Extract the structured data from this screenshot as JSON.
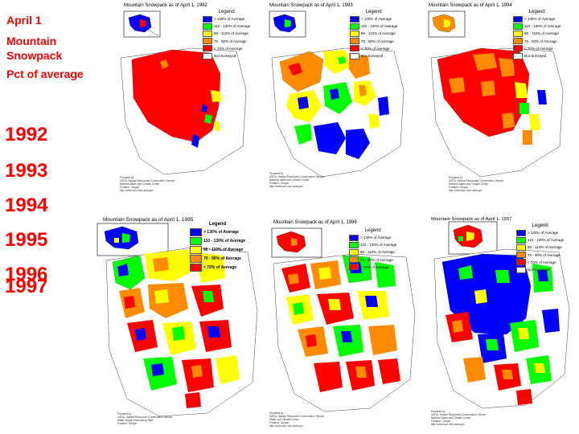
{
  "sidebar": {
    "date": "April 1",
    "title_line1": "Mountain",
    "title_line2": "Snowpack",
    "subtitle": "Pct of average",
    "years": [
      "1992",
      "1993",
      "1994",
      "1995",
      "1996",
      "1997"
    ]
  },
  "colors": {
    "c1": "#0000ff",
    "c2": "#00ff00",
    "c3": "#ffff00",
    "c4": "#ff8c00",
    "c5": "#ff0000",
    "c6": "#ffffff",
    "year_text": "#ff0000"
  },
  "legend_std": {
    "title": "Legend",
    "items": [
      {
        "label": "> 130% of Average",
        "color": "#0000ff"
      },
      {
        "label": "110 - 130% of Average",
        "color": "#00ff00"
      },
      {
        "label": "90 - 110% of Average",
        "color": "#ffff00"
      },
      {
        "label": "70 - 90% of Average",
        "color": "#ff8c00"
      },
      {
        "label": "< 70% of Average",
        "color": "#ff0000"
      },
      {
        "label": "Not Surveyed",
        "color": "#ffffff"
      }
    ]
  },
  "legend_1995": {
    "title": "Legend",
    "items": [
      {
        "label": "> 130% of Average",
        "color": "#0000ff"
      },
      {
        "label": "110 - 130% of Average",
        "color": "#00ff00"
      },
      {
        "label": "90 - 110% of Average",
        "color": "#ffff00"
      },
      {
        "label": "70 - 90% of Average",
        "color": "#ff8c00"
      },
      {
        "label": "< 70% of Average",
        "color": "#ff0000"
      }
    ]
  },
  "legend_1996": {
    "title": "Legend",
    "items": [
      {
        "label": "> 130% of Average",
        "color": "#0000ff"
      },
      {
        "label": "110 - 130% of Average",
        "color": "#00ff00"
      },
      {
        "label": "90 - 110% of Average",
        "color": "#ffff00"
      },
      {
        "label": "70 - 90% of Average",
        "color": "#ff8c00"
      },
      {
        "label": "< 70% of Average",
        "color": "#ff0000"
      }
    ]
  },
  "panels": [
    {
      "year": "1992",
      "title": "Mountain Snowpack as of April 1, 1992",
      "credit": "Prepared by\nUSDA, Natural Resources Conservation Service\nNational Water and Climate Center\nPortland, Oregon\nhttp://www.wcc.nrcs.usda.gov"
    },
    {
      "year": "1993",
      "title": "Mountain Snowpack as of April 1, 1993",
      "credit": "Prepared by\nUSDA, Natural Resources Conservation Service\nNational Water and Climate Center\nPortland, Oregon\nhttp://www.wcc.nrcs.usda.gov"
    },
    {
      "year": "1994",
      "title": "Mountain Snowpack as of April 1, 1994",
      "credit": "Prepared by\nUSDA, Natural Resources Conservation Service\nNational Water and Climate Center\nPortland, Oregon\nhttp://www.wcc.nrcs.usda.gov"
    },
    {
      "year": "1995",
      "title": "Mountain Snowpack as of April 1, 1995",
      "credit": "Prepared by\nUSDA, Natural Resources Conservation Service\nWater Supply Forecasting Staff\nPortland, Oregon"
    },
    {
      "year": "1996",
      "title": "Mountain Snowpack as of April 1, 1996",
      "credit": "Prepared by\nUSDA, Natural Resources Conservation Service\nWater and Climate Center\nPortland, Oregon\nhttp://www.wcc.nrcs.usda.gov"
    },
    {
      "year": "1997",
      "title": "Mountain Snowpack as of April 1, 1997",
      "credit": "Prepared by\nUSDA, Natural Resources Conservation Service\nNational Water and Climate Center\nPortland, Oregon\nhttp://www.wcc.nrcs.usda.gov"
    }
  ]
}
